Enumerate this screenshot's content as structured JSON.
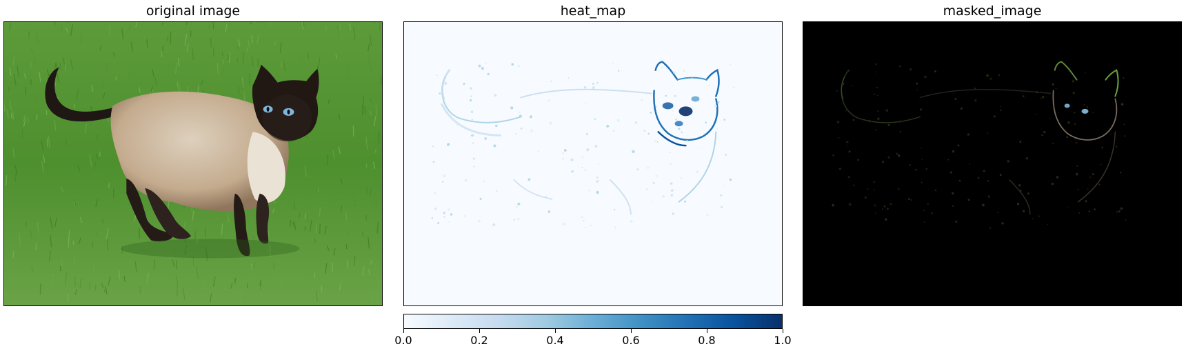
{
  "panels": {
    "original": {
      "title": "original image"
    },
    "heatmap": {
      "title": "heat_map"
    },
    "masked": {
      "title": "masked_image"
    }
  },
  "chart_data": [
    {
      "type": "image",
      "title": "original image",
      "content": "siamese-cat-on-grass-photo"
    },
    {
      "type": "heatmap",
      "title": "heat_map",
      "colormap": "Blues",
      "colorbar": {
        "orientation": "horizontal",
        "position": "bottom",
        "range": [
          0.0,
          1.0
        ],
        "ticks": [
          0.0,
          0.2,
          0.4,
          0.6,
          0.8,
          1.0
        ],
        "tick_labels": [
          "0.0",
          "0.2",
          "0.4",
          "0.6",
          "0.8",
          "1.0"
        ]
      }
    },
    {
      "type": "image",
      "title": "masked_image",
      "content": "heat-map-masked-cat-photo"
    }
  ],
  "colors": {
    "grass": "#4e8f2e",
    "cat_fur": "#c8b49c",
    "cat_points": "#1e1613",
    "eyes": "#7fb6dc",
    "heat_low": "#f7fbff",
    "heat_high": "#08306b",
    "masked_bg": "#000000"
  }
}
